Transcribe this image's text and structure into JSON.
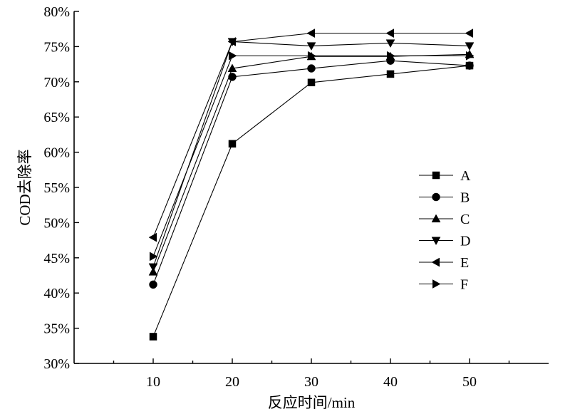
{
  "chart_data": {
    "type": "line",
    "xlabel": "反应时间/min",
    "ylabel": "COD去除率",
    "x": [
      10,
      20,
      30,
      40,
      50
    ],
    "xlim": [
      0,
      60
    ],
    "xticks": [
      10,
      20,
      30,
      40,
      50
    ],
    "ylim": [
      30,
      80
    ],
    "yticks": [
      30,
      35,
      40,
      45,
      50,
      55,
      60,
      65,
      70,
      75,
      80
    ],
    "y_unit_suffix": "%",
    "grid": false,
    "legend_position": "right",
    "series": [
      {
        "name": "A",
        "marker": "square",
        "values": [
          33.8,
          61.2,
          69.9,
          71.1,
          72.3
        ]
      },
      {
        "name": "B",
        "marker": "circle",
        "values": [
          41.2,
          70.7,
          71.9,
          73.0,
          72.3
        ]
      },
      {
        "name": "C",
        "marker": "triangle-up",
        "values": [
          43.0,
          71.9,
          73.6,
          73.6,
          73.9
        ]
      },
      {
        "name": "D",
        "marker": "triangle-down",
        "values": [
          43.7,
          75.7,
          75.1,
          75.5,
          75.1
        ]
      },
      {
        "name": "E",
        "marker": "triangle-left",
        "values": [
          47.9,
          75.7,
          76.9,
          76.9,
          76.9
        ]
      },
      {
        "name": "F",
        "marker": "triangle-right",
        "values": [
          45.2,
          73.7,
          73.7,
          73.7,
          73.7
        ]
      }
    ]
  }
}
